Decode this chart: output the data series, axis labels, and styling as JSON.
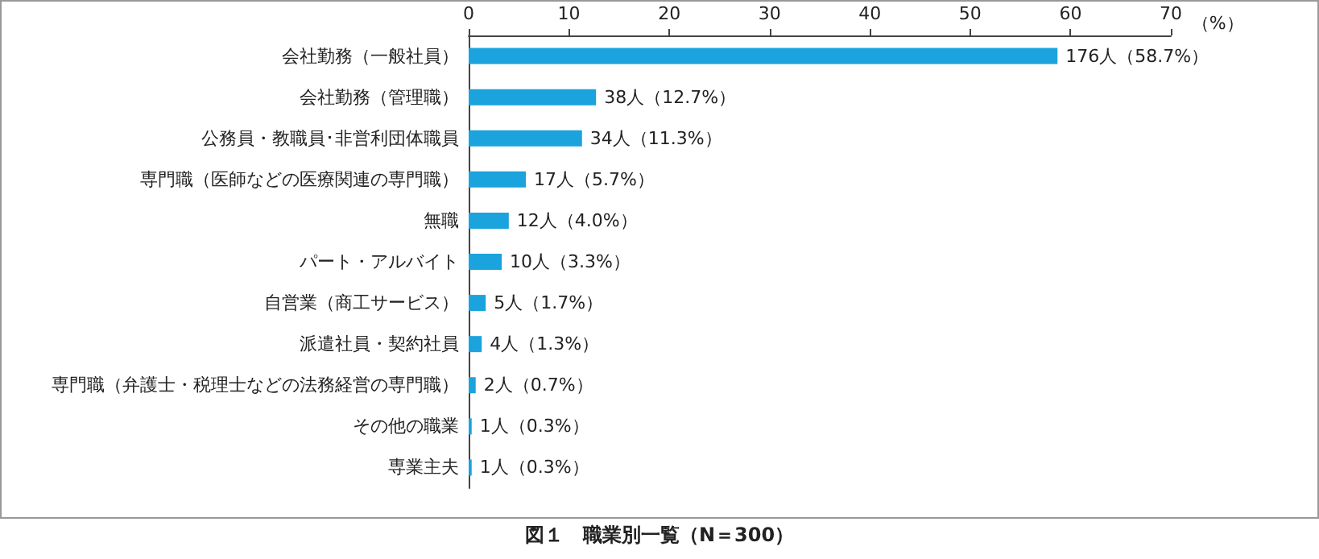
{
  "chart_data": {
    "type": "bar",
    "orientation": "horizontal",
    "title": "図１　職業別一覧（N＝300）",
    "xlabel": "（%）",
    "categories": [
      "会社勤務（一般社員）",
      "会社勤務（管理職）",
      "公務員・教職員･非営利団体職員",
      "専門職（医師などの医療関連の専門職）",
      "無職",
      "パート・アルバイト",
      "自営業（商工サービス）",
      "派遣社員・契約社員",
      "専門職（弁護士・税理士などの法務経営の専門職）",
      "その他の職業",
      "専業主夫"
    ],
    "values": [
      58.7,
      12.7,
      11.3,
      5.7,
      4.0,
      3.3,
      1.7,
      1.3,
      0.7,
      0.3,
      0.3
    ],
    "value_labels": [
      "176人（58.7%）",
      "38人（12.7%）",
      "34人（11.3%）",
      "17人（5.7%）",
      "12人（4.0%）",
      "10人（3.3%）",
      "5人（1.7%）",
      "4人（1.3%）",
      "2人（0.7%）",
      "1人（0.3%）",
      "1人（0.3%）"
    ],
    "color": "#1aa3dc",
    "xlim": [
      0,
      70
    ],
    "xticks": [
      0,
      10,
      20,
      30,
      40,
      50,
      60,
      70
    ],
    "grid": false
  }
}
